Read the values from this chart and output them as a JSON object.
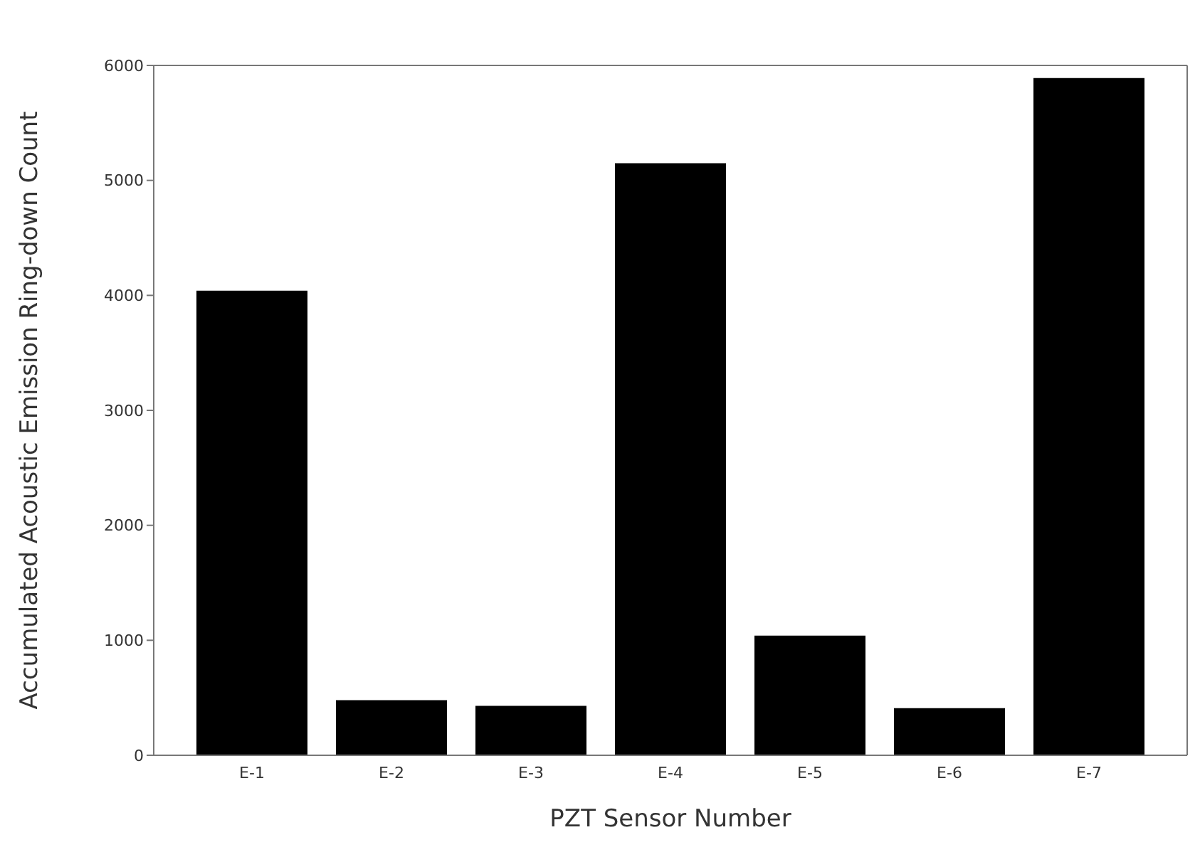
{
  "chart_data": {
    "type": "bar",
    "xlabel": "PZT Sensor Number",
    "ylabel": "Accumulated Acoustic Emission Ring-down Count",
    "categories": [
      "E-1",
      "E-2",
      "E-3",
      "E-4",
      "E-5",
      "E-6",
      "E-7"
    ],
    "values": [
      4040,
      480,
      430,
      5150,
      1040,
      410,
      5890
    ],
    "color": "#000000",
    "ylim": [
      0,
      6000
    ],
    "yticks": [
      0,
      1000,
      2000,
      3000,
      4000,
      5000,
      6000
    ],
    "grid": false,
    "legend": false
  }
}
